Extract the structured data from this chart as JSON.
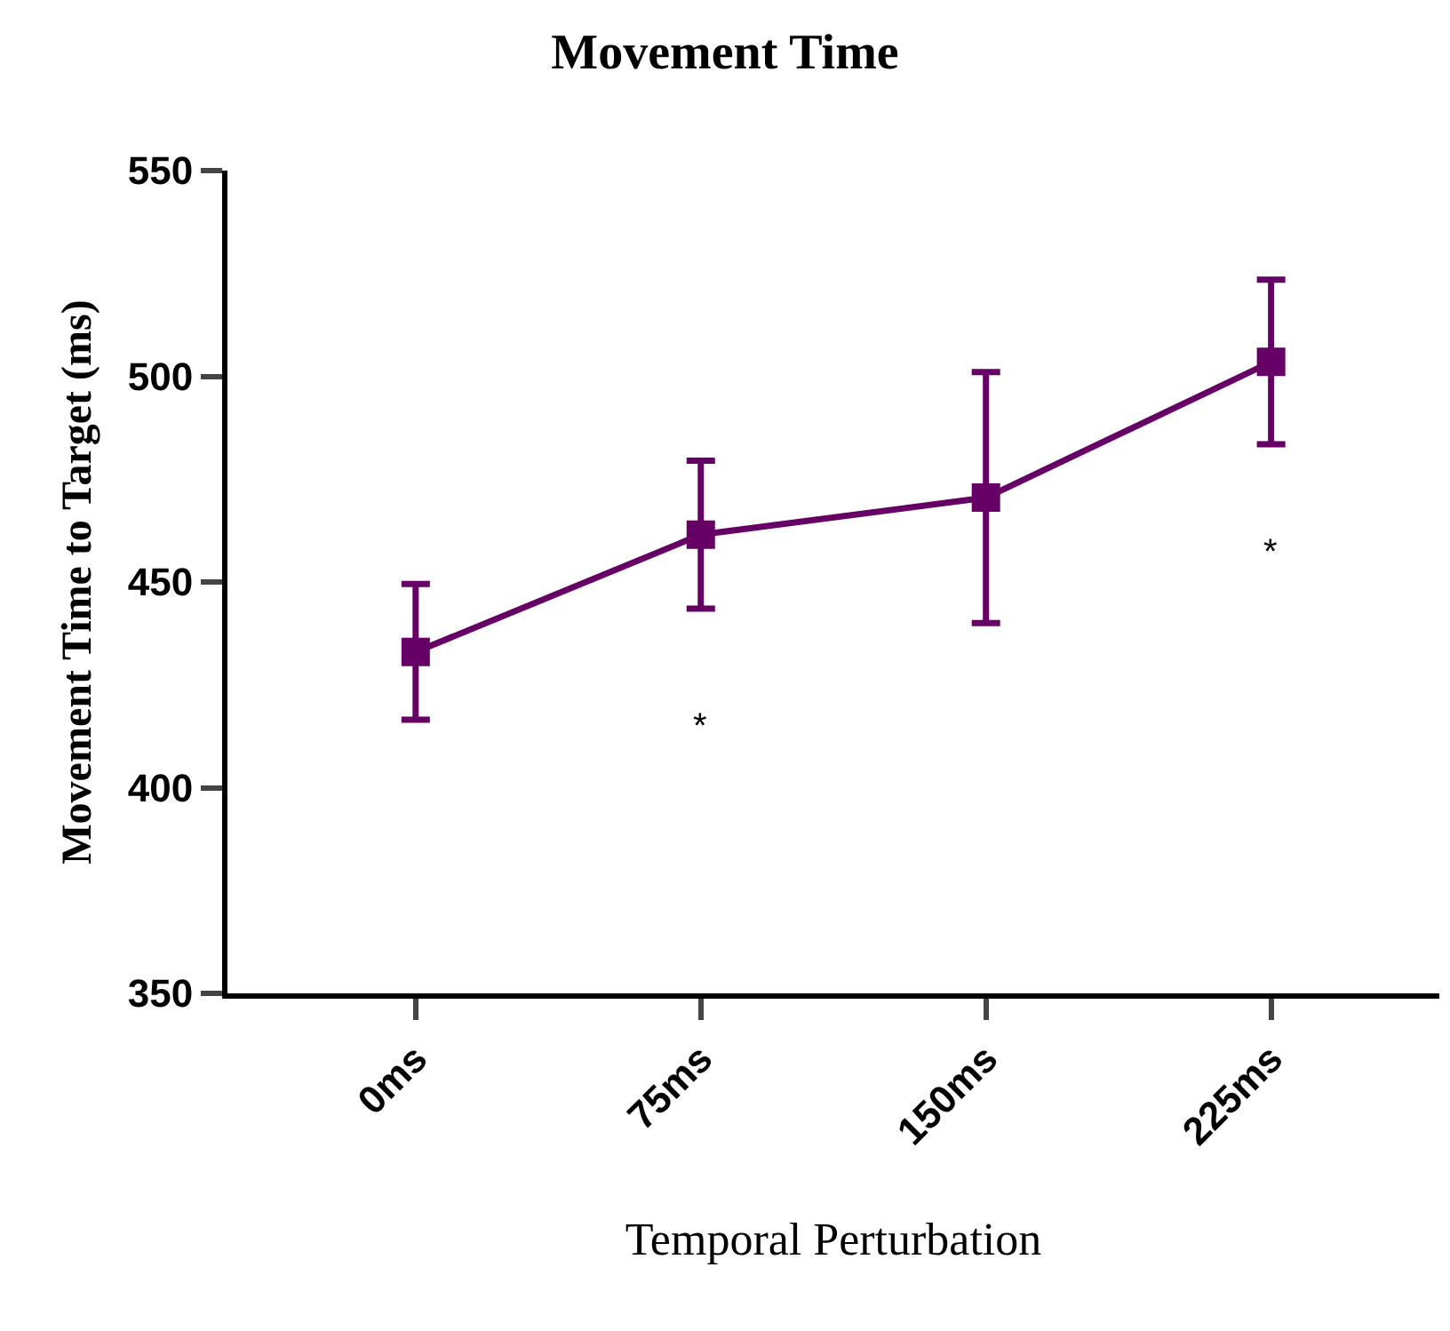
{
  "chart_data": {
    "type": "line",
    "title": "Movement Time",
    "xlabel": "Temporal Perturbation",
    "ylabel": "Movement Time to Target (ms)",
    "categories": [
      "0ms",
      "75ms",
      "150ms",
      "225ms"
    ],
    "series": [
      {
        "color": "#660066",
        "values": [
          433,
          461.5,
          470.5,
          503.5
        ],
        "errors": [
          16.5,
          18,
          30.5,
          20
        ]
      }
    ],
    "ylim": [
      350,
      550
    ],
    "yticks": [
      350,
      400,
      450,
      500,
      550
    ],
    "grid": false,
    "marker": "square",
    "line_style": "solid",
    "annotations": [
      "*",
      "*"
    ]
  }
}
